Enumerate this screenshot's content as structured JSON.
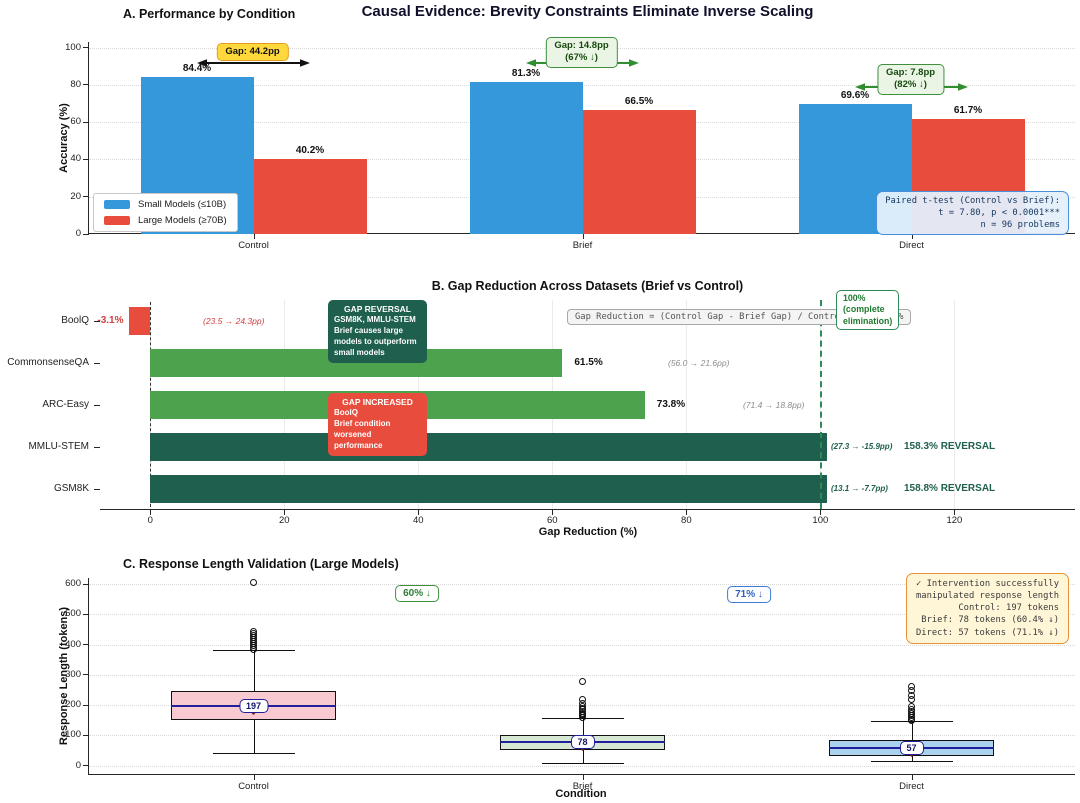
{
  "figure_title": "Causal Evidence: Brevity Constraints Eliminate Inverse Scaling",
  "chart_data": [
    {
      "id": "panel_a",
      "type": "bar",
      "title": "A. Performance by Condition",
      "ylabel": "Accuracy (%)",
      "ylim": [
        0,
        103
      ],
      "yticks": [
        0,
        20,
        40,
        60,
        80,
        100
      ],
      "grid": true,
      "legend_position": "lower left",
      "categories": [
        "Control",
        "Brief",
        "Direct"
      ],
      "series": [
        {
          "name": "Small Models (≤10B)",
          "color": "#3498db",
          "values": [
            84.4,
            81.3,
            69.6
          ],
          "labels": [
            "84.4%",
            "81.3%",
            "69.6%"
          ]
        },
        {
          "name": "Large Models (≥70B)",
          "color": "#e74c3c",
          "values": [
            40.2,
            66.5,
            61.7
          ],
          "labels": [
            "40.2%",
            "66.5%",
            "61.7%"
          ]
        }
      ],
      "gap_annotations": [
        {
          "condition": "Control",
          "text": "Gap: 44.2pp",
          "style": "yellow",
          "arrow_color": "#111111"
        },
        {
          "condition": "Brief",
          "text": "Gap: 14.8pp\n(67% ↓)",
          "style": "green",
          "arrow_color": "#2f8f2f"
        },
        {
          "condition": "Direct",
          "text": "Gap: 7.8pp\n(82% ↓)",
          "style": "green",
          "arrow_color": "#2f8f2f"
        }
      ],
      "stats_box": "Paired t-test (Control vs Brief):\nt = 7.80, p < 0.0001***\nn = 96 problems"
    },
    {
      "id": "panel_b",
      "type": "bar",
      "orientation": "horizontal",
      "title": "B. Gap Reduction Across Datasets (Brief vs Control)",
      "xlabel": "Gap Reduction (%)",
      "xlim": [
        -7.5,
        138
      ],
      "xticks": [
        0,
        20,
        40,
        60,
        80,
        100,
        120
      ],
      "grid": true,
      "bars": [
        {
          "dataset": "BoolQ",
          "value": -3.1,
          "bar_end": -3.1,
          "value_label": "-3.1%",
          "note": "(23.5 → 24.3pp)",
          "color": "#e74c3c",
          "note_style": "red"
        },
        {
          "dataset": "CommonsenseQA",
          "value": 61.5,
          "bar_end": 61.5,
          "value_label": "61.5%",
          "note": "(56.0 → 21.6pp)",
          "color": "#4da24d",
          "note_style": "gray"
        },
        {
          "dataset": "ARC-Easy",
          "value": 73.8,
          "bar_end": 73.8,
          "value_label": "73.8%",
          "note": "(71.4 → 18.8pp)",
          "color": "#4da24d",
          "note_style": "gray"
        },
        {
          "dataset": "MMLU-STEM",
          "value": 158.3,
          "bar_end": 101,
          "value_label": "",
          "note": "(27.3 → -15.9pp)",
          "reversal_label": "158.3% REVERSAL",
          "color": "#1e5f4e",
          "note_style": "darkgreen"
        },
        {
          "dataset": "GSM8K",
          "value": 158.8,
          "bar_end": 101,
          "value_label": "",
          "note": "(13.1 → -7.7pp)",
          "reversal_label": "158.8% REVERSAL",
          "color": "#1e5f4e",
          "note_style": "darkgreen"
        }
      ],
      "formula_note": "Gap Reduction = (Control Gap - Brief Gap) / Control Gap × 100%",
      "reference_line": {
        "value": 100,
        "color": "#2e8b57",
        "label": "100%\n(complete\nelimination)"
      },
      "callouts": {
        "reversal": {
          "title": "GAP REVERSAL",
          "body": "GSM8K, MMLU-STEM\nBrief causes large\nmodels to outperform\nsmall models",
          "color": "#1e5f4e"
        },
        "increased": {
          "title": "GAP INCREASED",
          "body": "BoolQ\nBrief condition\nworsened performance",
          "color": "#e74c3c"
        }
      }
    },
    {
      "id": "panel_c",
      "type": "boxplot",
      "title": "C. Response Length Validation (Large Models)",
      "xlabel": "Condition",
      "ylabel": "Response Length (tokens)",
      "ylim": [
        -31,
        620
      ],
      "yticks": [
        0,
        100,
        200,
        300,
        400,
        500,
        600
      ],
      "grid": true,
      "categories": [
        "Control",
        "Brief",
        "Direct"
      ],
      "boxes": [
        {
          "condition": "Control",
          "median": 197,
          "median_label": "197",
          "q1": 152,
          "q3": 245,
          "whisker_low": 43,
          "whisker_high": 383,
          "mean": 188,
          "fill": "#f9c9d2",
          "outliers": [
            385,
            391,
            397,
            403,
            409,
            416,
            423,
            430,
            437,
            444,
            605
          ]
        },
        {
          "condition": "Brief",
          "median": 78,
          "median_label": "78",
          "q1": 52,
          "q3": 101,
          "whisker_low": 10,
          "whisker_high": 156,
          "mean": 70,
          "fill": "#d6e7d3",
          "outliers": [
            160,
            164,
            168,
            173,
            178,
            184,
            190,
            197,
            204,
            217,
            277
          ]
        },
        {
          "condition": "Direct",
          "median": 57,
          "median_label": "57",
          "q1": 32,
          "q3": 85,
          "whisker_low": 15,
          "whisker_high": 147,
          "mean": 50,
          "fill": "#abd3ee",
          "outliers": [
            148,
            153,
            158,
            164,
            171,
            178,
            186,
            195,
            217,
            232,
            248,
            260
          ]
        }
      ],
      "reduction_badges": [
        {
          "text": "60% ↓",
          "color": "#2e7d32",
          "border": "#3f8f3f"
        },
        {
          "text": "71% ↓",
          "color": "#2b63c4",
          "border": "#3d7bd9"
        }
      ],
      "stats_box": "✓ Intervention successfully\nmanipulated response length\nControl: 197 tokens\nBrief: 78 tokens (60.4% ↓)\nDirect: 57 tokens (71.1% ↓)"
    }
  ]
}
